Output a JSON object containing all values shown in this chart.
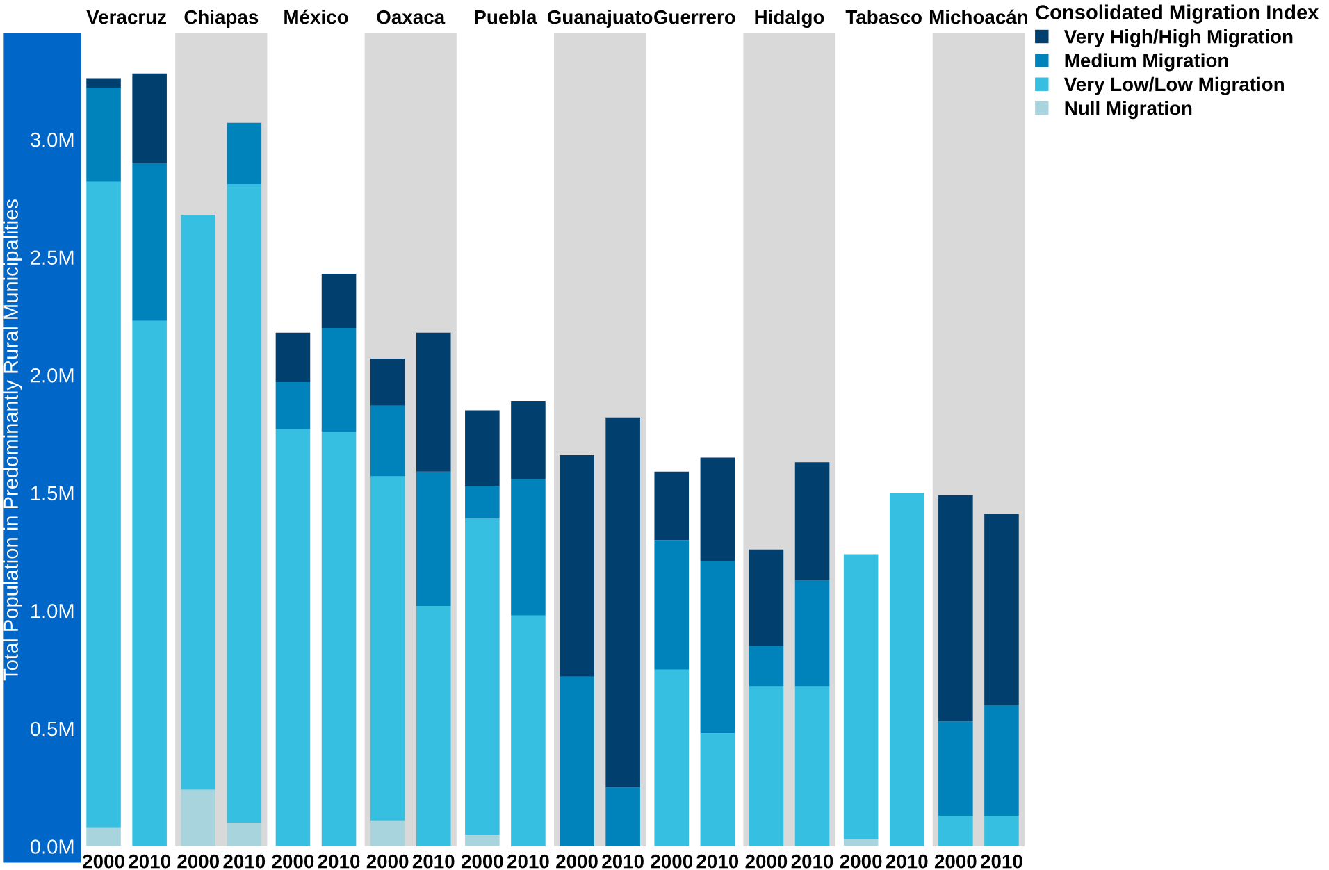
{
  "chart_data": [
    {
      "type": "bar",
      "title": "Veracruz",
      "ylabel": "Total Population in Predominantly Rural Municipalities",
      "categories": [
        "2000",
        "2010"
      ],
      "stacked": true,
      "ylim": [
        0,
        3.45
      ],
      "yticks": [
        {
          "value": 0,
          "label": "0.0M"
        },
        {
          "value": 0.5,
          "label": "0.5M"
        },
        {
          "value": 1,
          "label": "1.0M"
        },
        {
          "value": 1.5,
          "label": "1.5M"
        },
        {
          "value": 2,
          "label": "2.0M"
        },
        {
          "value": 2.5,
          "label": "2.5M"
        },
        {
          "value": 3,
          "label": "3.0M"
        }
      ],
      "series": [
        {
          "color": "#a8d5dd",
          "values": [
            0.08,
            0
          ]
        },
        {
          "color": "#36bfe0",
          "values": [
            2.74,
            2.23
          ]
        },
        {
          "color": "#0083bb",
          "values": [
            0.4,
            0.67
          ]
        },
        {
          "color": "#003f6e",
          "values": [
            0.04,
            0.38
          ]
        }
      ]
    },
    {
      "type": "bar",
      "title": "Chiapas",
      "categories": [
        "2000",
        "2010"
      ],
      "stacked": true,
      "ylim": [
        0,
        3.45
      ],
      "tick_labels": "x",
      "series": [
        {
          "color": "#a8d5dd",
          "values": [
            0.24,
            0.1
          ]
        },
        {
          "color": "#36bfe0",
          "values": [
            2.44,
            2.71
          ]
        },
        {
          "color": "#0083bb",
          "values": [
            0,
            0.26
          ]
        },
        {
          "color": "#003f6e",
          "values": [
            0,
            0
          ]
        }
      ]
    },
    {
      "type": "bar",
      "title": "México",
      "categories": [
        "2000",
        "2010"
      ],
      "stacked": true,
      "ylim": [
        0,
        3.45
      ],
      "tick_labels": "x",
      "series": [
        {
          "color": "#a8d5dd",
          "values": [
            0,
            0
          ]
        },
        {
          "color": "#36bfe0",
          "values": [
            1.77,
            1.76
          ]
        },
        {
          "color": "#0083bb",
          "values": [
            0.2,
            0.44
          ]
        },
        {
          "color": "#003f6e",
          "values": [
            0.21,
            0.23
          ]
        }
      ]
    },
    {
      "type": "bar",
      "title": "Oaxaca",
      "categories": [
        "2000",
        "2010"
      ],
      "stacked": true,
      "ylim": [
        0,
        3.45
      ],
      "tick_labels": "x",
      "series": [
        {
          "color": "#a8d5dd",
          "values": [
            0.11,
            0
          ]
        },
        {
          "color": "#36bfe0",
          "values": [
            1.46,
            1.02
          ]
        },
        {
          "color": "#0083bb",
          "values": [
            0.3,
            0.57
          ]
        },
        {
          "color": "#003f6e",
          "values": [
            0.2,
            0.59
          ]
        }
      ]
    },
    {
      "type": "bar",
      "title": "Puebla",
      "categories": [
        "2000",
        "2010"
      ],
      "stacked": true,
      "ylim": [
        0,
        3.45
      ],
      "tick_labels": "x",
      "series": [
        {
          "color": "#a8d5dd",
          "values": [
            0.05,
            0
          ]
        },
        {
          "color": "#36bfe0",
          "values": [
            1.34,
            0.98
          ]
        },
        {
          "color": "#0083bb",
          "values": [
            0.14,
            0.58
          ]
        },
        {
          "color": "#003f6e",
          "values": [
            0.32,
            0.33
          ]
        }
      ]
    },
    {
      "type": "bar",
      "title": "Guanajuato",
      "categories": [
        "2000",
        "2010"
      ],
      "stacked": true,
      "ylim": [
        0,
        3.45
      ],
      "tick_labels": "x",
      "series": [
        {
          "color": "#a8d5dd",
          "values": [
            0,
            0
          ]
        },
        {
          "color": "#36bfe0",
          "values": [
            0,
            0
          ]
        },
        {
          "color": "#0083bb",
          "values": [
            0.72,
            0.25
          ]
        },
        {
          "color": "#003f6e",
          "values": [
            0.94,
            1.57
          ]
        }
      ]
    },
    {
      "type": "bar",
      "title": "Guerrero",
      "categories": [
        "2000",
        "2010"
      ],
      "stacked": true,
      "ylim": [
        0,
        3.45
      ],
      "tick_labels": "x",
      "series": [
        {
          "color": "#a8d5dd",
          "values": [
            0,
            0
          ]
        },
        {
          "color": "#36bfe0",
          "values": [
            0.75,
            0.48
          ]
        },
        {
          "color": "#0083bb",
          "values": [
            0.55,
            0.73
          ]
        },
        {
          "color": "#003f6e",
          "values": [
            0.29,
            0.44
          ]
        }
      ]
    },
    {
      "type": "bar",
      "title": "Hidalgo",
      "categories": [
        "2000",
        "2010"
      ],
      "stacked": true,
      "ylim": [
        0,
        3.45
      ],
      "tick_labels": "x",
      "series": [
        {
          "color": "#a8d5dd",
          "values": [
            0,
            0
          ]
        },
        {
          "color": "#36bfe0",
          "values": [
            0.68,
            0.68
          ]
        },
        {
          "color": "#0083bb",
          "values": [
            0.17,
            0.45
          ]
        },
        {
          "color": "#003f6e",
          "values": [
            0.41,
            0.5
          ]
        }
      ]
    },
    {
      "type": "bar",
      "title": "Tabasco",
      "categories": [
        "2000",
        "2010"
      ],
      "stacked": true,
      "ylim": [
        0,
        3.45
      ],
      "tick_labels": "x",
      "series": [
        {
          "color": "#a8d5dd",
          "values": [
            0.03,
            0
          ]
        },
        {
          "color": "#36bfe0",
          "values": [
            1.21,
            1.5
          ]
        },
        {
          "color": "#0083bb",
          "values": [
            0,
            0
          ]
        },
        {
          "color": "#003f6e",
          "values": [
            0,
            0
          ]
        }
      ]
    },
    {
      "type": "bar",
      "title": "Michoacán",
      "categories": [
        "2000",
        "2010"
      ],
      "stacked": true,
      "ylim": [
        0,
        3.45
      ],
      "tick_labels": "x",
      "legend": "top right",
      "legend_title": "Consolidated Migration Index",
      "series": [
        {
          "name": "Null Migration",
          "color": "#a8d5dd",
          "values": [
            0,
            0
          ]
        },
        {
          "name": "Very Low/Low Migration",
          "color": "#36bfe0",
          "values": [
            0.13,
            0.13
          ]
        },
        {
          "name": "Medium Migration",
          "color": "#0083bb",
          "values": [
            0.4,
            0.47
          ]
        },
        {
          "name": "Very High/High Migration",
          "color": "#003f6e",
          "values": [
            0.96,
            0.81
          ]
        }
      ]
    }
  ]
}
